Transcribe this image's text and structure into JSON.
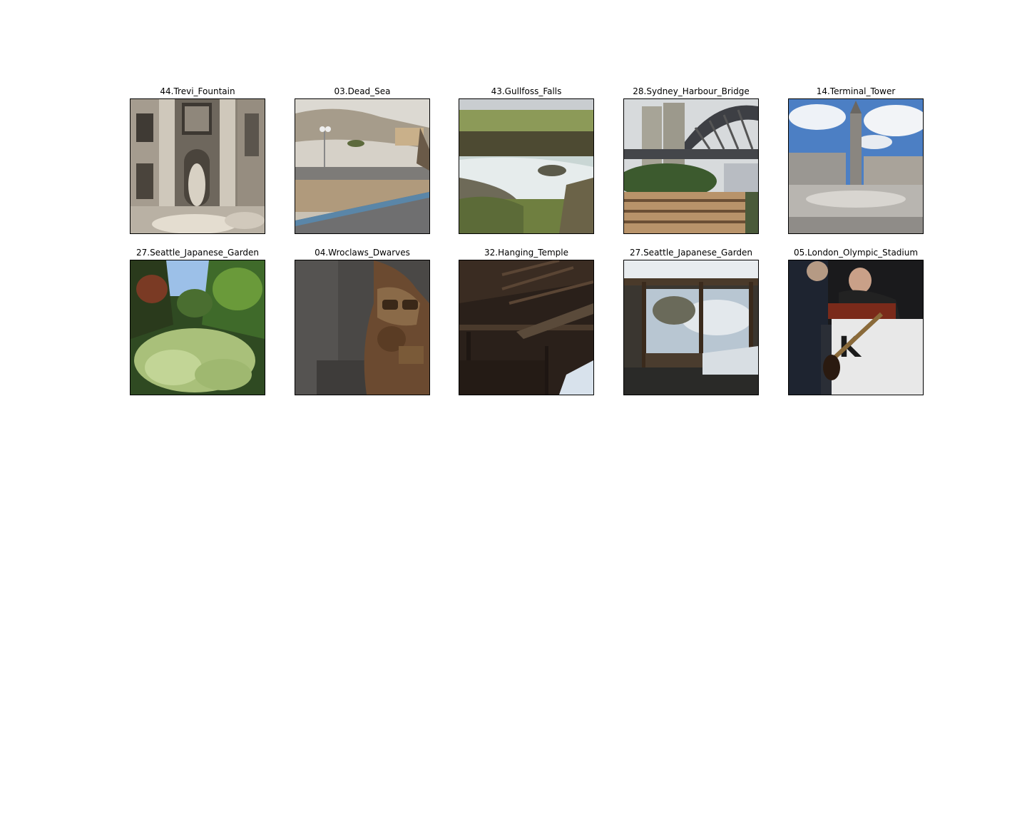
{
  "panels": [
    {
      "title": "44.Trevi_Fountain",
      "photo": "trevi-fountain-photo"
    },
    {
      "title": "03.Dead_Sea",
      "photo": "dead-sea-photo"
    },
    {
      "title": "43.Gullfoss_Falls",
      "photo": "gullfoss-falls-photo"
    },
    {
      "title": "28.Sydney_Harbour_Bridge",
      "photo": "sydney-harbour-bridge-photo"
    },
    {
      "title": "14.Terminal_Tower",
      "photo": "terminal-tower-photo"
    },
    {
      "title": "27.Seattle_Japanese_Garden",
      "photo": "seattle-japanese-garden-photo"
    },
    {
      "title": "04.Wroclaws_Dwarves",
      "photo": "wroclaws-dwarves-photo"
    },
    {
      "title": "32.Hanging_Temple",
      "photo": "hanging-temple-photo"
    },
    {
      "title": "27.Seattle_Japanese_Garden",
      "photo": "seattle-japanese-garden-snow-photo"
    },
    {
      "title": "05.London_Olympic_Stadium",
      "photo": "london-olympic-stadium-photo"
    }
  ]
}
